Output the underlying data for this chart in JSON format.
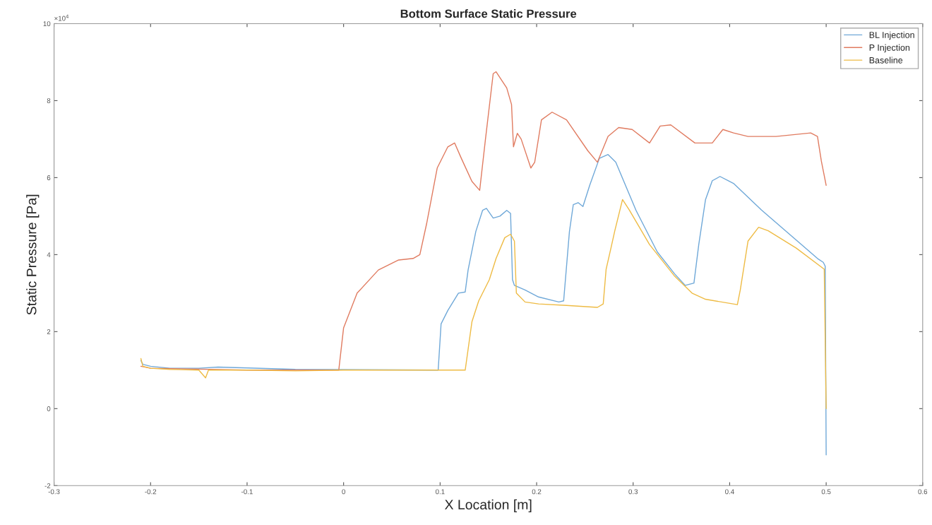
{
  "chart_data": {
    "type": "line",
    "title": "Bottom Surface Static Pressure",
    "xlabel": "X Location [m]",
    "ylabel": "Static Pressure [Pa]",
    "annotations": [
      "×10$^{4}$"
    ],
    "xlim": [
      -0.3,
      0.6
    ],
    "xticks": [
      -0.3,
      -0.2,
      -0.1,
      0,
      0.1,
      0.2,
      0.3,
      0.4,
      0.5,
      0.6
    ],
    "ylim": [
      -2,
      10
    ],
    "yticks": [
      -2,
      0,
      2,
      4,
      6,
      8,
      10
    ],
    "grid": false,
    "legend": "top right",
    "marker": "none",
    "line_style": "solid",
    "series": [
      {
        "name": "BL Injection",
        "color": "#6fa8d8",
        "x": [
          -0.21,
          -0.208,
          -0.2,
          -0.18,
          -0.15,
          -0.13,
          -0.05,
          0.098,
          0.101,
          0.108,
          0.119,
          0.126,
          0.129,
          0.137,
          0.144,
          0.148,
          0.155,
          0.162,
          0.169,
          0.173,
          0.175,
          0.177,
          0.188,
          0.202,
          0.223,
          0.228,
          0.234,
          0.238,
          0.243,
          0.248,
          0.255,
          0.265,
          0.274,
          0.282,
          0.303,
          0.325,
          0.343,
          0.354,
          0.363,
          0.368,
          0.375,
          0.382,
          0.39,
          0.404,
          0.433,
          0.462,
          0.491,
          0.497,
          0.499,
          0.5
        ],
        "values": [
          1.25,
          1.15,
          1.1,
          1.05,
          1.05,
          1.08,
          1.02,
          1.0,
          2.2,
          2.55,
          3.0,
          3.03,
          3.6,
          4.6,
          5.15,
          5.2,
          4.95,
          5.0,
          5.15,
          5.07,
          3.35,
          3.2,
          3.08,
          2.9,
          2.77,
          2.8,
          4.6,
          5.3,
          5.35,
          5.25,
          5.8,
          6.5,
          6.6,
          6.4,
          5.15,
          4.07,
          3.5,
          3.2,
          3.26,
          4.26,
          5.43,
          5.92,
          6.03,
          5.85,
          5.16,
          4.53,
          3.9,
          3.8,
          3.7,
          -1.2
        ]
      },
      {
        "name": "P Injection",
        "color": "#e07b60",
        "x": [
          -0.21,
          -0.2,
          -0.1,
          -0.05,
          -0.005,
          0.0,
          0.014,
          0.036,
          0.057,
          0.072,
          0.079,
          0.086,
          0.097,
          0.108,
          0.115,
          0.122,
          0.133,
          0.141,
          0.147,
          0.155,
          0.158,
          0.169,
          0.174,
          0.176,
          0.18,
          0.184,
          0.194,
          0.198,
          0.205,
          0.216,
          0.231,
          0.253,
          0.263,
          0.274,
          0.285,
          0.299,
          0.317,
          0.328,
          0.339,
          0.364,
          0.382,
          0.393,
          0.404,
          0.419,
          0.448,
          0.484,
          0.491,
          0.495,
          0.5
        ],
        "values": [
          1.1,
          1.05,
          1.0,
          1.0,
          1.0,
          2.1,
          3.0,
          3.6,
          3.86,
          3.9,
          4.0,
          4.8,
          6.25,
          6.8,
          6.9,
          6.5,
          5.9,
          5.67,
          7.0,
          8.7,
          8.75,
          8.33,
          7.9,
          6.8,
          7.15,
          7.0,
          6.25,
          6.4,
          7.5,
          7.7,
          7.5,
          6.7,
          6.4,
          7.07,
          7.3,
          7.25,
          6.9,
          7.34,
          7.37,
          6.9,
          6.9,
          7.25,
          7.16,
          7.07,
          7.07,
          7.16,
          7.07,
          6.43,
          5.8
        ]
      },
      {
        "name": "Baseline",
        "color": "#eebb44",
        "x": [
          -0.21,
          -0.208,
          -0.2,
          -0.18,
          -0.15,
          -0.143,
          -0.14,
          -0.1,
          -0.05,
          0.0,
          0.05,
          0.1,
          0.126,
          0.133,
          0.14,
          0.151,
          0.158,
          0.167,
          0.173,
          0.177,
          0.179,
          0.188,
          0.202,
          0.231,
          0.263,
          0.269,
          0.272,
          0.277,
          0.281,
          0.289,
          0.296,
          0.317,
          0.343,
          0.361,
          0.375,
          0.408,
          0.411,
          0.419,
          0.43,
          0.44,
          0.469,
          0.498,
          0.5
        ],
        "values": [
          1.3,
          1.1,
          1.05,
          1.02,
          1.0,
          0.8,
          1.0,
          1.0,
          0.98,
          1.0,
          1.0,
          1.0,
          1.0,
          2.26,
          2.8,
          3.35,
          3.9,
          4.44,
          4.53,
          4.35,
          3.0,
          2.77,
          2.72,
          2.68,
          2.63,
          2.72,
          3.62,
          4.17,
          4.62,
          5.43,
          5.16,
          4.26,
          3.44,
          3.0,
          2.84,
          2.7,
          3.08,
          4.35,
          4.71,
          4.62,
          4.17,
          3.62,
          0.0
        ]
      }
    ]
  }
}
